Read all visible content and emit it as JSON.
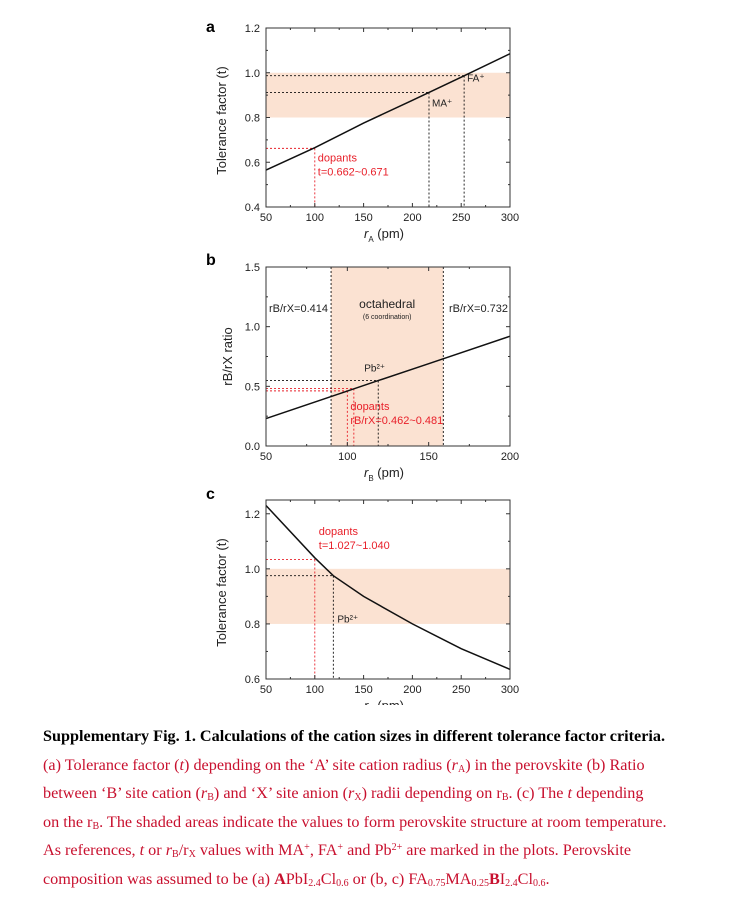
{
  "colors": {
    "shade": "#fbe2d2",
    "curve": "#111111",
    "dopant": "#e8202a",
    "reference": "#111111",
    "axis": "#333333"
  },
  "chart_data": [
    {
      "panel": "a",
      "type": "line",
      "xlabel_symbol": "r",
      "xlabel_sub": "A",
      "xlabel_unit": " (pm)",
      "ylabel": "Tolerance factor (t)",
      "xlim": [
        50,
        300
      ],
      "ylim": [
        0.4,
        1.2
      ],
      "xticks": [
        50,
        100,
        150,
        200,
        250,
        300
      ],
      "yticks": [
        0.4,
        0.6,
        0.8,
        1.0,
        1.2
      ],
      "ytick_labels": [
        "0.4",
        "0.6",
        "0.8",
        "1.0",
        "1.2"
      ],
      "grid": false,
      "shaded_band": {
        "axis": "y",
        "from": 0.8,
        "to": 1.0
      },
      "series": [
        {
          "values": [
            [
              50,
              0.565
            ],
            [
              100,
              0.665
            ],
            [
              150,
              0.775
            ],
            [
              200,
              0.877
            ],
            [
              250,
              0.98
            ],
            [
              300,
              1.085
            ]
          ]
        }
      ],
      "markers": [
        {
          "label": "MA⁺",
          "x": 217,
          "y": 0.912
        },
        {
          "label": "FA⁺",
          "x": 253,
          "y": 0.987
        }
      ],
      "dopant_marker": {
        "x": 100,
        "y": 0.662
      },
      "annotation": {
        "line1": "dopants",
        "line2": "t=0.662~0.671"
      }
    },
    {
      "panel": "b",
      "type": "line",
      "xlabel_symbol": "r",
      "xlabel_sub": "B",
      "xlabel_unit": " (pm)",
      "ylabel": "rB/rX ratio",
      "xlim": [
        50,
        200
      ],
      "ylim": [
        0.0,
        1.5
      ],
      "xticks": [
        50,
        100,
        150,
        200
      ],
      "yticks": [
        0.0,
        0.5,
        1.0,
        1.5
      ],
      "ytick_labels": [
        "0.0",
        "0.5",
        "1.0",
        "1.5"
      ],
      "grid": false,
      "shaded_band": {
        "axis": "x",
        "from": 90,
        "to": 159
      },
      "series": [
        {
          "values": [
            [
              50,
              0.23
            ],
            [
              100,
              0.46
            ],
            [
              119,
              0.548
            ],
            [
              150,
              0.69
            ],
            [
              200,
              0.92
            ]
          ]
        }
      ],
      "boundary_labels": {
        "left": "rB/rX=0.414",
        "right": "rB/rX=0.732"
      },
      "region_label": {
        "title": "octahedral",
        "subtitle": "(6 coordination)"
      },
      "markers": [
        {
          "label": "Pb²⁺",
          "x": 119,
          "y": 0.548
        }
      ],
      "dopant_marker": {
        "x": 100,
        "y": 0.462
      },
      "dopant_marker_2": {
        "x": 104,
        "y": 0.481
      },
      "annotation": {
        "line1": "dopants",
        "line2": "rB/rX=0.462~0.481"
      }
    },
    {
      "panel": "c",
      "type": "line",
      "xlabel_symbol": "r",
      "xlabel_sub": "B",
      "xlabel_unit": " (pm)",
      "ylabel": "Tolerance factor (t)",
      "xlim": [
        50,
        300
      ],
      "ylim": [
        0.6,
        1.25
      ],
      "xticks": [
        50,
        100,
        150,
        200,
        250,
        300
      ],
      "yticks": [
        0.6,
        0.8,
        1.0,
        1.2
      ],
      "ytick_labels": [
        "0.6",
        "0.8",
        "1.0",
        "1.2"
      ],
      "grid": false,
      "shaded_band": {
        "axis": "y",
        "from": 0.8,
        "to": 1.0
      },
      "series": [
        {
          "values": [
            [
              50,
              1.23
            ],
            [
              100,
              1.04
            ],
            [
              119,
              0.975
            ],
            [
              150,
              0.9
            ],
            [
              200,
              0.8
            ],
            [
              250,
              0.71
            ],
            [
              300,
              0.635
            ]
          ]
        }
      ],
      "markers": [
        {
          "label": "Pb²⁺",
          "x": 119,
          "y": 0.975
        }
      ],
      "dopant_marker": {
        "x": 100,
        "y": 1.034
      },
      "annotation": {
        "line1": "dopants",
        "line2": "t=1.027~1.040"
      }
    }
  ],
  "caption": {
    "title": "Supplementary Fig. 1. Calculations of the cation sizes in different tolerance factor criteria."
  }
}
